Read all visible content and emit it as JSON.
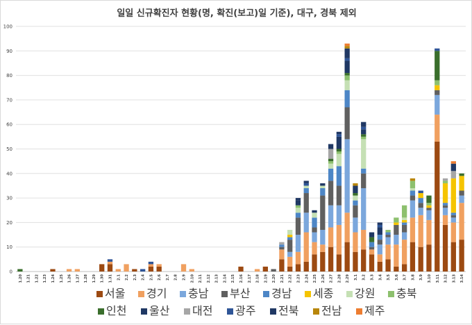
{
  "chart_data": {
    "type": "bar",
    "stacked": true,
    "title": "일일 신규확진자 현황(명, 확진(보고)일 기준), 대구, 경북 제외",
    "xlabel": "",
    "ylabel": "",
    "ylim": [
      0,
      100
    ],
    "yticks": [
      0,
      10,
      20,
      30,
      40,
      50,
      60,
      70,
      80,
      90,
      100
    ],
    "grid": true,
    "legend_position": "bottom",
    "categories": [
      "1.20",
      "1.21",
      "1.22",
      "1.23",
      "1.24",
      "1.25",
      "1.26",
      "1.27",
      "1.28",
      "1.29",
      "1.30",
      "1.31",
      "2.1",
      "2.2",
      "2.3",
      "2.4",
      "2.5",
      "2.6",
      "2.7",
      "2.8",
      "2.9",
      "2.10",
      "2.11",
      "2.12",
      "2.13",
      "2.14",
      "2.15",
      "2.16",
      "2.17",
      "2.18",
      "2.19",
      "2.20",
      "2.21",
      "2.22",
      "2.23",
      "2.24",
      "2.25",
      "2.26",
      "2.27",
      "2.28",
      "2.29",
      "3.1",
      "3.2",
      "3.3",
      "3.4",
      "3.5",
      "3.6",
      "3.7",
      "3.8",
      "3.9",
      "3.10",
      "3.11",
      "3.12",
      "3.13",
      "3.14"
    ],
    "series": [
      {
        "name": "서울",
        "color": "#9c4a12",
        "values": [
          0,
          0,
          0,
          0,
          1,
          0,
          0,
          0,
          0,
          0,
          3,
          3,
          0,
          0,
          1,
          0,
          2,
          2,
          0,
          0,
          0,
          0,
          0,
          0,
          0,
          0,
          0,
          2,
          0,
          0,
          2,
          0,
          5,
          2,
          3,
          4,
          7,
          8,
          10,
          7,
          12,
          8,
          9,
          7,
          4,
          5,
          2,
          3,
          12,
          10,
          11,
          53,
          19,
          12,
          13
        ]
      },
      {
        "name": "경기",
        "color": "#f0a060",
        "values": [
          0,
          0,
          0,
          0,
          0,
          0,
          1,
          1,
          0,
          0,
          0,
          1,
          1,
          3,
          0,
          0,
          1,
          1,
          0,
          0,
          3,
          1,
          0,
          0,
          0,
          0,
          0,
          0,
          0,
          1,
          0,
          0,
          4,
          4,
          5,
          12,
          5,
          3,
          8,
          12,
          12,
          8,
          8,
          2,
          3,
          6,
          9,
          10,
          10,
          13,
          10,
          11,
          4,
          8,
          15
        ]
      },
      {
        "name": "충남",
        "color": "#7ba7dc",
        "values": [
          0,
          0,
          0,
          0,
          0,
          0,
          0,
          0,
          0,
          0,
          0,
          0,
          0,
          0,
          0,
          0,
          0,
          0,
          0,
          0,
          0,
          0,
          0,
          0,
          0,
          0,
          0,
          0,
          0,
          0,
          0,
          0,
          0,
          2,
          7,
          8,
          4,
          6,
          9,
          8,
          30,
          6,
          17,
          0,
          4,
          3,
          4,
          3,
          7,
          3,
          4,
          8,
          3,
          2,
          3
        ]
      },
      {
        "name": "부산",
        "color": "#606060",
        "values": [
          0,
          0,
          0,
          0,
          0,
          0,
          0,
          0,
          0,
          0,
          0,
          0,
          0,
          0,
          0,
          0,
          0,
          0,
          0,
          0,
          0,
          0,
          0,
          0,
          0,
          0,
          0,
          0,
          0,
          0,
          0,
          1,
          1,
          5,
          7,
          8,
          2,
          14,
          10,
          8,
          13,
          5,
          6,
          1,
          2,
          1,
          4,
          3,
          2,
          2,
          1,
          2,
          1,
          1,
          2
        ]
      },
      {
        "name": "경남",
        "color": "#4d86c6",
        "values": [
          0,
          0,
          0,
          0,
          0,
          0,
          0,
          0,
          0,
          0,
          0,
          0,
          0,
          0,
          0,
          0,
          0,
          0,
          0,
          0,
          0,
          0,
          0,
          0,
          0,
          0,
          0,
          0,
          0,
          0,
          0,
          0,
          1,
          1,
          2,
          2,
          4,
          3,
          5,
          8,
          7,
          2,
          2,
          2,
          2,
          1,
          0,
          1,
          2,
          2,
          0,
          0,
          1,
          1,
          0
        ]
      },
      {
        "name": "세종",
        "color": "#f5c400",
        "values": [
          0,
          0,
          0,
          0,
          0,
          0,
          0,
          0,
          0,
          0,
          0,
          0,
          0,
          0,
          0,
          0,
          0,
          0,
          0,
          0,
          0,
          0,
          0,
          0,
          0,
          0,
          0,
          0,
          0,
          0,
          0,
          0,
          0,
          1,
          0,
          0,
          0,
          0,
          0,
          0,
          0,
          0,
          0,
          0,
          0,
          0,
          1,
          1,
          0,
          2,
          1,
          2,
          8,
          14,
          6
        ]
      },
      {
        "name": "강원",
        "color": "#c5e0b4",
        "values": [
          0,
          0,
          0,
          0,
          0,
          0,
          0,
          0,
          0,
          0,
          0,
          0,
          0,
          0,
          0,
          0,
          0,
          0,
          0,
          0,
          0,
          0,
          0,
          0,
          0,
          0,
          0,
          0,
          0,
          0,
          0,
          0,
          0,
          2,
          2,
          1,
          2,
          1,
          2,
          5,
          4,
          2,
          12,
          0,
          0,
          0,
          0,
          1,
          1,
          0,
          0,
          0,
          0,
          0,
          0
        ]
      },
      {
        "name": "충북",
        "color": "#8dc06e",
        "values": [
          0,
          0,
          0,
          0,
          0,
          0,
          0,
          0,
          0,
          0,
          0,
          0,
          0,
          0,
          0,
          0,
          0,
          0,
          0,
          0,
          0,
          0,
          0,
          0,
          0,
          0,
          0,
          0,
          0,
          0,
          0,
          0,
          0,
          0,
          1,
          0,
          0,
          0,
          1,
          1,
          2,
          0,
          1,
          0,
          0,
          1,
          2,
          5,
          3,
          0,
          1,
          2,
          1,
          0,
          0
        ]
      },
      {
        "name": "인천",
        "color": "#3a6e2c",
        "values": [
          1,
          0,
          0,
          0,
          0,
          0,
          0,
          0,
          0,
          0,
          0,
          0,
          0,
          0,
          0,
          0,
          0,
          0,
          0,
          0,
          0,
          0,
          0,
          0,
          0,
          0,
          0,
          0,
          0,
          0,
          0,
          0,
          0,
          0,
          0,
          0,
          0,
          0,
          1,
          1,
          1,
          1,
          1,
          2,
          0,
          0,
          0,
          0,
          0,
          0,
          3,
          12,
          0,
          0,
          1
        ]
      },
      {
        "name": "울산",
        "color": "#1f3864",
        "values": [
          0,
          0,
          0,
          0,
          0,
          0,
          0,
          0,
          0,
          0,
          0,
          0,
          0,
          0,
          0,
          0,
          0,
          0,
          0,
          0,
          0,
          0,
          0,
          0,
          0,
          0,
          0,
          0,
          0,
          0,
          0,
          0,
          0,
          0,
          2,
          0,
          0,
          0,
          0,
          5,
          5,
          2,
          2,
          2,
          3,
          0,
          0,
          0,
          0,
          0,
          0,
          0,
          0,
          0,
          0
        ]
      },
      {
        "name": "대전",
        "color": "#a6a6a6",
        "values": [
          0,
          0,
          0,
          0,
          0,
          0,
          0,
          0,
          0,
          0,
          0,
          0,
          0,
          0,
          0,
          0,
          0,
          0,
          0,
          0,
          0,
          0,
          0,
          0,
          0,
          0,
          0,
          0,
          0,
          0,
          0,
          0,
          1,
          0,
          0,
          0,
          0,
          0,
          4,
          0,
          0,
          0,
          0,
          0,
          0,
          0,
          0,
          0,
          0,
          0,
          0,
          0,
          1,
          3,
          0
        ]
      },
      {
        "name": "광주",
        "color": "#2f5597",
        "values": [
          0,
          0,
          0,
          0,
          0,
          0,
          0,
          0,
          0,
          0,
          0,
          1,
          0,
          0,
          0,
          1,
          1,
          0,
          0,
          0,
          0,
          0,
          0,
          0,
          0,
          0,
          0,
          0,
          0,
          0,
          0,
          0,
          0,
          0,
          0,
          1,
          0,
          0,
          0,
          1,
          1,
          0,
          1,
          0,
          1,
          0,
          0,
          0,
          0,
          1,
          0,
          1,
          0,
          0,
          0
        ]
      },
      {
        "name": "전북",
        "color": "#203864",
        "values": [
          0,
          0,
          0,
          0,
          0,
          0,
          0,
          0,
          0,
          0,
          0,
          0,
          0,
          0,
          0,
          0,
          0,
          0,
          0,
          0,
          0,
          0,
          0,
          0,
          0,
          0,
          0,
          0,
          0,
          0,
          0,
          0,
          0,
          0,
          1,
          1,
          1,
          1,
          2,
          1,
          4,
          1,
          2,
          0,
          1,
          0,
          0,
          0,
          0,
          0,
          0,
          0,
          0,
          3,
          0
        ]
      },
      {
        "name": "전남",
        "color": "#b8860b",
        "values": [
          0,
          0,
          0,
          0,
          0,
          0,
          0,
          0,
          0,
          0,
          0,
          0,
          0,
          0,
          0,
          0,
          0,
          0,
          0,
          0,
          0,
          0,
          0,
          0,
          0,
          0,
          0,
          0,
          0,
          0,
          0,
          0,
          0,
          0,
          0,
          0,
          0,
          0,
          0,
          0,
          1,
          1,
          0,
          0,
          0,
          0,
          0,
          0,
          1,
          0,
          0,
          0,
          0,
          0,
          0
        ]
      },
      {
        "name": "제주",
        "color": "#ed7d31",
        "values": [
          0,
          0,
          0,
          0,
          0,
          0,
          0,
          0,
          0,
          0,
          0,
          0,
          0,
          0,
          0,
          0,
          0,
          0,
          0,
          0,
          0,
          0,
          0,
          0,
          0,
          0,
          0,
          0,
          0,
          0,
          0,
          0,
          0,
          0,
          0,
          0,
          0,
          0,
          0,
          0,
          1,
          0,
          0,
          0,
          0,
          0,
          0,
          0,
          0,
          0,
          0,
          0,
          0,
          1,
          0
        ]
      }
    ]
  }
}
